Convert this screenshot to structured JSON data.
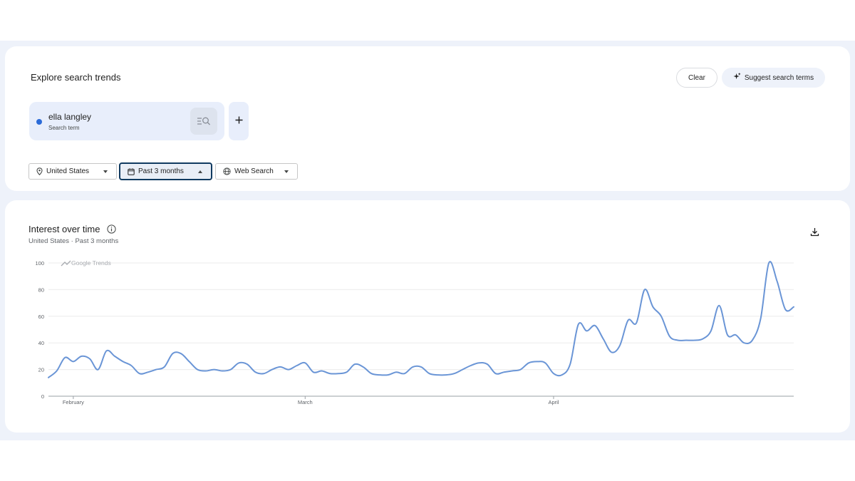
{
  "explore": {
    "title": "Explore search trends",
    "clear_label": "Clear",
    "suggest_label": "Suggest search terms",
    "term": {
      "name": "ella langley",
      "type": "Search term",
      "color": "#2b6bd8"
    },
    "filters": {
      "location": "United States",
      "time_range": "Past 3 months",
      "property": "Web Search"
    }
  },
  "interest": {
    "title": "Interest over time",
    "subtitle": "United States · Past 3 months",
    "watermark": "Google Trends"
  },
  "chart_data": {
    "type": "line",
    "ylim": [
      0,
      100
    ],
    "yticks": [
      0,
      20,
      40,
      60,
      80,
      100
    ],
    "xtick_labels": [
      {
        "label": "February",
        "index": 3
      },
      {
        "label": "March",
        "index": 31
      },
      {
        "label": "April",
        "index": 61
      }
    ],
    "grid": true,
    "series": [
      {
        "color": "#6a95d6",
        "values": [
          14,
          19,
          29,
          26,
          30,
          28,
          20,
          34,
          30,
          26,
          23,
          17,
          18,
          20,
          22,
          32,
          32,
          26,
          20,
          19,
          20,
          19,
          20,
          25,
          24,
          18,
          17,
          20,
          22,
          20,
          23,
          25,
          18,
          19,
          17,
          17,
          18,
          24,
          22,
          17,
          16,
          16,
          18,
          17,
          22,
          22,
          17,
          16,
          16,
          17,
          20,
          23,
          25,
          24,
          17,
          18,
          19,
          20,
          25,
          26,
          25,
          17,
          16,
          24,
          54,
          49,
          53,
          43,
          33,
          38,
          57,
          55,
          80,
          67,
          60,
          45,
          42,
          42,
          42,
          43,
          49,
          68,
          46,
          46,
          40,
          42,
          58,
          100,
          86,
          65,
          67
        ]
      }
    ]
  }
}
